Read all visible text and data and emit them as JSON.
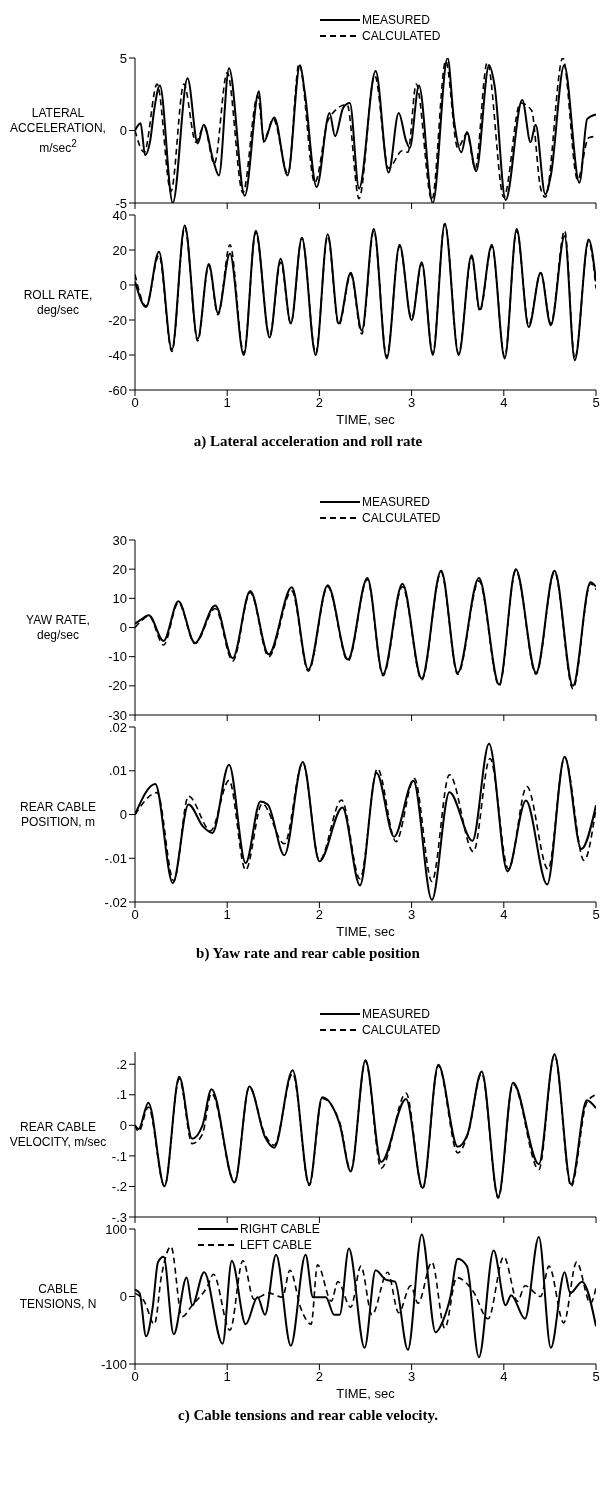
{
  "chart_data": [
    {
      "type": "line",
      "ylabel": "LATERAL ACCELERATION, m/sec$^{2}$",
      "xlim": [
        0,
        5
      ],
      "xticks": [
        0,
        1,
        2,
        3,
        4,
        5
      ],
      "ylim": [
        -5,
        5
      ],
      "yticks": [
        -5,
        0,
        5
      ],
      "tick_labels": "y",
      "legend": "top right",
      "series": [
        {
          "name": "MEASURED",
          "color": "#000000",
          "line_style": "solid",
          "x": [
            0,
            0.06,
            0.11,
            0.165,
            0.21,
            0.27,
            0.41,
            0.57,
            0.68,
            0.745,
            0.85,
            0.91,
            1.02,
            1.19,
            1.345,
            1.395,
            1.51,
            1.655,
            1.79,
            1.84,
            1.97,
            2.11,
            2.17,
            2.26,
            2.33,
            2.43,
            2.61,
            2.75,
            2.86,
            2.94,
            2.98,
            3.08,
            3.23,
            3.39,
            3.46,
            3.54,
            3.6,
            3.7,
            3.84,
            3.9,
            4.02,
            4.2,
            4.29,
            4.345,
            4.45,
            4.51,
            4.655,
            4.82,
            4.905,
            5.0
          ],
          "values": [
            0,
            0.5,
            -1.7,
            -0.7,
            1.5,
            3.1,
            -5,
            3.6,
            -0.9,
            0.4,
            -2.1,
            -3.1,
            4.3,
            -4.5,
            2.7,
            -0.8,
            0.9,
            -3.1,
            4.5,
            2.7,
            -3.9,
            1.2,
            -0.4,
            1.6,
            1.9,
            -4.0,
            4.1,
            -2.9,
            1.2,
            -0.7,
            -1.2,
            3.1,
            -5,
            5,
            0.7,
            -1.5,
            -0.1,
            -2.8,
            4.5,
            3.1,
            -4.8,
            2.1,
            -0.8,
            0.4,
            -4.4,
            -3.1,
            4.5,
            -3.6,
            0.8,
            1.1
          ]
        },
        {
          "name": "CALCULATED",
          "color": "#000000",
          "line_style": "dashed",
          "x": [
            0,
            0.1,
            0.24,
            0.39,
            0.53,
            0.66,
            0.75,
            0.86,
            1.0,
            1.17,
            1.33,
            1.4,
            1.5,
            1.66,
            1.78,
            1.95,
            2.1,
            2.3,
            2.43,
            2.6,
            2.75,
            2.9,
            2.96,
            3.05,
            3.22,
            3.37,
            3.5,
            3.6,
            3.69,
            3.82,
            4.0,
            4.18,
            4.3,
            4.4,
            4.45,
            4.64,
            4.8,
            4.92,
            5.0
          ],
          "values": [
            0,
            -1.5,
            3.2,
            -4.2,
            3.2,
            -0.8,
            0.3,
            -2.3,
            4.0,
            -4.3,
            2.4,
            -0.6,
            0.8,
            -3.0,
            4.6,
            -3.6,
            0.8,
            1.8,
            -4.7,
            3.8,
            -2.6,
            -1.4,
            -1.5,
            3.2,
            -4.8,
            4.8,
            -1.2,
            -0.2,
            -2.6,
            4.7,
            -4.6,
            1.9,
            1.4,
            -4.0,
            -4.6,
            5.0,
            -3.4,
            -0.5,
            -0.4
          ]
        }
      ]
    },
    {
      "type": "line",
      "ylabel": "ROLL RATE, deg/sec",
      "xlabel": "TIME, sec",
      "xlim": [
        0,
        5
      ],
      "xticks": [
        0,
        1,
        2,
        3,
        4,
        5
      ],
      "ylim": [
        -60,
        40
      ],
      "yticks": [
        -60,
        -40,
        -20,
        0,
        20,
        40
      ],
      "annotations": [
        "a)  Lateral acceleration and roll rate"
      ],
      "series": [
        {
          "color": "#000000",
          "line_style": "solid",
          "x": [
            0,
            0.12,
            0.26,
            0.4,
            0.54,
            0.68,
            0.8,
            0.9,
            1.03,
            1.18,
            1.31,
            1.46,
            1.58,
            1.69,
            1.81,
            1.96,
            2.09,
            2.21,
            2.34,
            2.46,
            2.59,
            2.73,
            2.87,
            3.0,
            3.11,
            3.23,
            3.36,
            3.51,
            3.65,
            3.74,
            3.87,
            4.01,
            4.14,
            4.27,
            4.4,
            4.51,
            4.66,
            4.77,
            4.92,
            5.0
          ],
          "values": [
            2,
            -12.6,
            19,
            -37,
            34,
            -31,
            12,
            -16,
            18,
            -40,
            31,
            -30,
            15,
            -22,
            27,
            -40,
            29,
            -22,
            7,
            -26,
            32,
            -42,
            23,
            -20,
            13,
            -40,
            35,
            -40,
            17,
            -14,
            23,
            -42,
            32,
            -24,
            7,
            -23,
            28,
            -43,
            26,
            2
          ]
        },
        {
          "color": "#000000",
          "line_style": "dashed",
          "x": [
            0,
            0.12,
            0.26,
            0.4,
            0.54,
            0.68,
            0.8,
            0.9,
            1.03,
            1.18,
            1.31,
            1.46,
            1.58,
            1.69,
            1.81,
            1.96,
            2.09,
            2.21,
            2.34,
            2.46,
            2.59,
            2.73,
            2.87,
            3.0,
            3.11,
            3.23,
            3.36,
            3.51,
            3.65,
            3.74,
            3.87,
            4.01,
            4.14,
            4.27,
            4.4,
            4.51,
            4.66,
            4.77,
            4.92,
            5.0
          ],
          "values": [
            6,
            -12,
            17,
            -38,
            33,
            -32,
            11,
            -17,
            23,
            -39,
            30,
            -29,
            13,
            -22,
            27,
            -39,
            28,
            -23,
            6,
            -28,
            31,
            -41,
            22,
            -19,
            12,
            -39,
            35,
            -39,
            16,
            -15,
            22,
            -41,
            31,
            -23,
            7,
            -22,
            31,
            -42,
            25,
            -2
          ]
        }
      ]
    },
    {
      "type": "line",
      "ylabel": "YAW RATE, deg/sec",
      "xlim": [
        0,
        5
      ],
      "xticks": [
        0,
        1,
        2,
        3,
        4,
        5
      ],
      "ylim": [
        -30,
        30
      ],
      "yticks": [
        -30,
        -20,
        -10,
        0,
        10,
        20,
        30
      ],
      "tick_labels": "y",
      "legend": "top right",
      "series": [
        {
          "name": "MEASURED",
          "color": "#000000",
          "line_style": "solid",
          "x": [
            0,
            0.06,
            0.15,
            0.31,
            0.47,
            0.65,
            0.87,
            1.06,
            1.25,
            1.45,
            1.7,
            1.88,
            2.09,
            2.31,
            2.52,
            2.69,
            2.9,
            3.11,
            3.32,
            3.5,
            3.73,
            3.95,
            4.13,
            4.35,
            4.55,
            4.75,
            4.94,
            5.0
          ],
          "values": [
            1.3,
            2.6,
            4.2,
            -4.6,
            9,
            -5.3,
            7.5,
            -10.5,
            12.5,
            -9.2,
            13.8,
            -14.5,
            14.5,
            -11,
            17,
            -16,
            15,
            -17.5,
            19.5,
            -15.5,
            17,
            -19.5,
            20,
            -15.5,
            19.5,
            -20,
            15.5,
            14
          ]
        },
        {
          "name": "CALCULATED",
          "color": "#000000",
          "line_style": "dashed",
          "x": [
            0,
            0.06,
            0.15,
            0.31,
            0.47,
            0.65,
            0.87,
            1.06,
            1.25,
            1.45,
            1.7,
            1.88,
            2.09,
            2.31,
            2.52,
            2.69,
            2.9,
            3.11,
            3.32,
            3.5,
            3.73,
            3.95,
            4.13,
            4.35,
            4.55,
            4.75,
            4.94,
            5.0
          ],
          "values": [
            0,
            2,
            4,
            -6,
            8.5,
            -5.5,
            6.5,
            -11.5,
            12,
            -10,
            12.5,
            -15,
            14,
            -11.5,
            16.5,
            -16.5,
            14,
            -18,
            19,
            -16,
            16,
            -20,
            19.5,
            -16,
            19,
            -21,
            15,
            13
          ]
        }
      ]
    },
    {
      "type": "line",
      "ylabel": "REAR CABLE POSITION, m",
      "xlabel": "TIME, sec",
      "xlim": [
        0,
        5
      ],
      "xticks": [
        0,
        1,
        2,
        3,
        4,
        5
      ],
      "ylim": [
        -0.02,
        0.02
      ],
      "yticks": [
        {
          "value": -0.02,
          "label": "-.02"
        },
        {
          "value": -0.01,
          "label": "-.01"
        },
        0,
        {
          "value": 0.01,
          "label": ".01"
        },
        {
          "value": 0.02,
          "label": ".02"
        }
      ],
      "annotations": [
        "b)  Yaw rate and rear cable position"
      ],
      "series": [
        {
          "color": "#000000",
          "line_style": "solid",
          "x": [
            0,
            0.22,
            0.41,
            0.58,
            0.74,
            0.84,
            1.02,
            1.2,
            1.36,
            1.44,
            1.62,
            1.82,
            2.0,
            2.25,
            2.44,
            2.62,
            2.81,
            3.02,
            3.22,
            3.41,
            3.66,
            3.84,
            4.04,
            4.24,
            4.47,
            4.66,
            4.84,
            5.0
          ],
          "values": [
            0,
            0.007,
            -0.0157,
            0.0023,
            -0.0028,
            -0.0042,
            0.0114,
            -0.0111,
            0.003,
            0.0023,
            -0.0093,
            0.012,
            -0.0107,
            0.0016,
            -0.0162,
            0.0095,
            -0.0051,
            0.0077,
            -0.0195,
            0.0051,
            -0.006,
            0.0162,
            -0.013,
            0.0032,
            -0.016,
            0.0132,
            -0.0079,
            0.0021
          ]
        },
        {
          "color": "#000000",
          "line_style": "dashed",
          "x": [
            0,
            0.24,
            0.42,
            0.58,
            0.82,
            1.02,
            1.2,
            1.38,
            1.62,
            1.82,
            2.0,
            2.24,
            2.44,
            2.63,
            2.83,
            3.03,
            3.22,
            3.41,
            3.67,
            3.85,
            4.05,
            4.25,
            4.48,
            4.66,
            4.87,
            5.0
          ],
          "values": [
            0,
            0.005,
            -0.0152,
            0.0042,
            -0.0037,
            0.0078,
            -0.0127,
            0.0025,
            -0.0067,
            0.0118,
            -0.0105,
            0.0033,
            -0.0147,
            0.0105,
            -0.0062,
            0.0082,
            -0.0153,
            0.0091,
            -0.0085,
            0.0128,
            -0.0125,
            0.0064,
            -0.0125,
            0.013,
            -0.0105,
            0.0015
          ]
        }
      ]
    },
    {
      "type": "line",
      "ylabel": "REAR CABLE VELOCITY, m/sec",
      "xlim": [
        0,
        5
      ],
      "xticks": [
        0,
        1,
        2,
        3,
        4,
        5
      ],
      "ylim": [
        -0.3,
        0.24
      ],
      "yticks": [
        {
          "value": -0.3,
          "label": "-.3"
        },
        {
          "value": -0.2,
          "label": "-.2"
        },
        {
          "value": -0.1,
          "label": "-.1"
        },
        0,
        {
          "value": 0.1,
          "label": ".1"
        },
        {
          "value": 0.2,
          "label": ".2"
        }
      ],
      "tick_labels": "y",
      "legend": "top right",
      "series": [
        {
          "name": "MEASURED",
          "color": "#000000",
          "line_style": "solid",
          "x": [
            0,
            0.04,
            0.145,
            0.32,
            0.48,
            0.62,
            0.73,
            0.83,
            1.08,
            1.24,
            1.41,
            1.51,
            1.71,
            1.89,
            2.03,
            2.22,
            2.34,
            2.5,
            2.67,
            2.94,
            3.12,
            3.29,
            3.5,
            3.61,
            3.76,
            3.94,
            4.1,
            4.38,
            4.55,
            4.73,
            4.9,
            5.0
          ],
          "values": [
            0,
            -0.012,
            0.074,
            -0.199,
            0.159,
            -0.044,
            -0.002,
            0.118,
            -0.187,
            0.127,
            -0.038,
            -0.073,
            0.18,
            -0.193,
            0.092,
            0.004,
            -0.151,
            0.213,
            -0.12,
            0.086,
            -0.205,
            0.198,
            -0.07,
            -0.026,
            0.176,
            -0.234,
            0.139,
            -0.127,
            0.233,
            -0.193,
            0.082,
            0.056
          ]
        },
        {
          "name": "CALCULATED",
          "color": "#000000",
          "line_style": "dashed",
          "x": [
            0,
            0.04,
            0.145,
            0.32,
            0.48,
            0.62,
            0.73,
            0.83,
            1.08,
            1.24,
            1.41,
            1.51,
            1.71,
            1.89,
            2.03,
            2.22,
            2.34,
            2.5,
            2.67,
            2.94,
            3.12,
            3.29,
            3.5,
            3.61,
            3.76,
            3.94,
            4.1,
            4.38,
            4.55,
            4.73,
            4.9,
            5.0
          ],
          "values": [
            0,
            -0.02,
            0.06,
            -0.2,
            0.152,
            -0.06,
            -0.03,
            0.105,
            -0.185,
            0.125,
            -0.03,
            -0.065,
            0.17,
            -0.197,
            0.088,
            0.01,
            -0.148,
            0.21,
            -0.14,
            0.105,
            -0.208,
            0.195,
            -0.09,
            -0.03,
            0.17,
            -0.238,
            0.135,
            -0.145,
            0.23,
            -0.2,
            0.075,
            0.1
          ]
        }
      ]
    },
    {
      "type": "line",
      "ylabel": "CABLE TENSIONS, N",
      "xlabel": "TIME, sec",
      "xlim": [
        0,
        5
      ],
      "xticks": [
        0,
        1,
        2,
        3,
        4,
        5
      ],
      "ylim": [
        -100,
        100
      ],
      "yticks": [
        -100,
        0,
        100
      ],
      "legend": "top left",
      "annotations": [
        "c)  Cable tensions and rear cable velocity."
      ],
      "series": [
        {
          "name": "RIGHT CABLE",
          "color": "#000000",
          "line_style": "solid",
          "x": [
            0,
            0.05,
            0.12,
            0.19,
            0.25,
            0.31,
            0.42,
            0.56,
            0.62,
            0.75,
            0.95,
            1.05,
            1.2,
            1.33,
            1.41,
            1.53,
            1.69,
            1.85,
            1.93,
            2.07,
            2.16,
            2.22,
            2.32,
            2.49,
            2.61,
            2.72,
            2.82,
            2.96,
            3.11,
            3.26,
            3.34,
            3.42,
            3.5,
            3.6,
            3.73,
            3.89,
            4.02,
            4.08,
            4.23,
            4.38,
            4.51,
            4.66,
            4.72,
            4.85,
            5.0
          ],
          "values": [
            10,
            5,
            -59,
            -18,
            51,
            59,
            -56,
            28,
            -13,
            36,
            -70,
            53,
            -41,
            -1,
            -27,
            62,
            -73,
            62,
            -1,
            -1,
            -27,
            -27,
            71,
            -76,
            39,
            25,
            22,
            -79,
            92,
            -53,
            -36,
            -1,
            56,
            45,
            -90,
            68,
            -13,
            2,
            -33,
            88,
            -76,
            36,
            5,
            22,
            -44
          ]
        },
        {
          "name": "LEFT CABLE",
          "color": "#000000",
          "line_style": "dashed",
          "x": [
            0,
            0.1,
            0.21,
            0.29,
            0.39,
            0.51,
            0.62,
            0.79,
            0.85,
            1.03,
            1.17,
            1.29,
            1.45,
            1.6,
            1.68,
            1.8,
            1.91,
            1.98,
            2.13,
            2.2,
            2.34,
            2.45,
            2.57,
            2.74,
            2.86,
            2.99,
            3.07,
            3.22,
            3.36,
            3.49,
            3.67,
            3.83,
            4.0,
            4.15,
            4.23,
            4.4,
            4.49,
            4.65,
            4.79,
            4.94,
            5.0
          ],
          "values": [
            5,
            -7,
            -41,
            33,
            74,
            -30,
            -13,
            16,
            33,
            -50,
            53,
            -4,
            5,
            -1,
            39,
            -18,
            -41,
            47,
            -7,
            22,
            -16,
            45,
            -27,
            36,
            -24,
            16,
            -10,
            51,
            -47,
            28,
            7,
            -33,
            59,
            -7,
            16,
            0,
            45,
            -39,
            51,
            -10,
            13
          ]
        }
      ]
    }
  ]
}
